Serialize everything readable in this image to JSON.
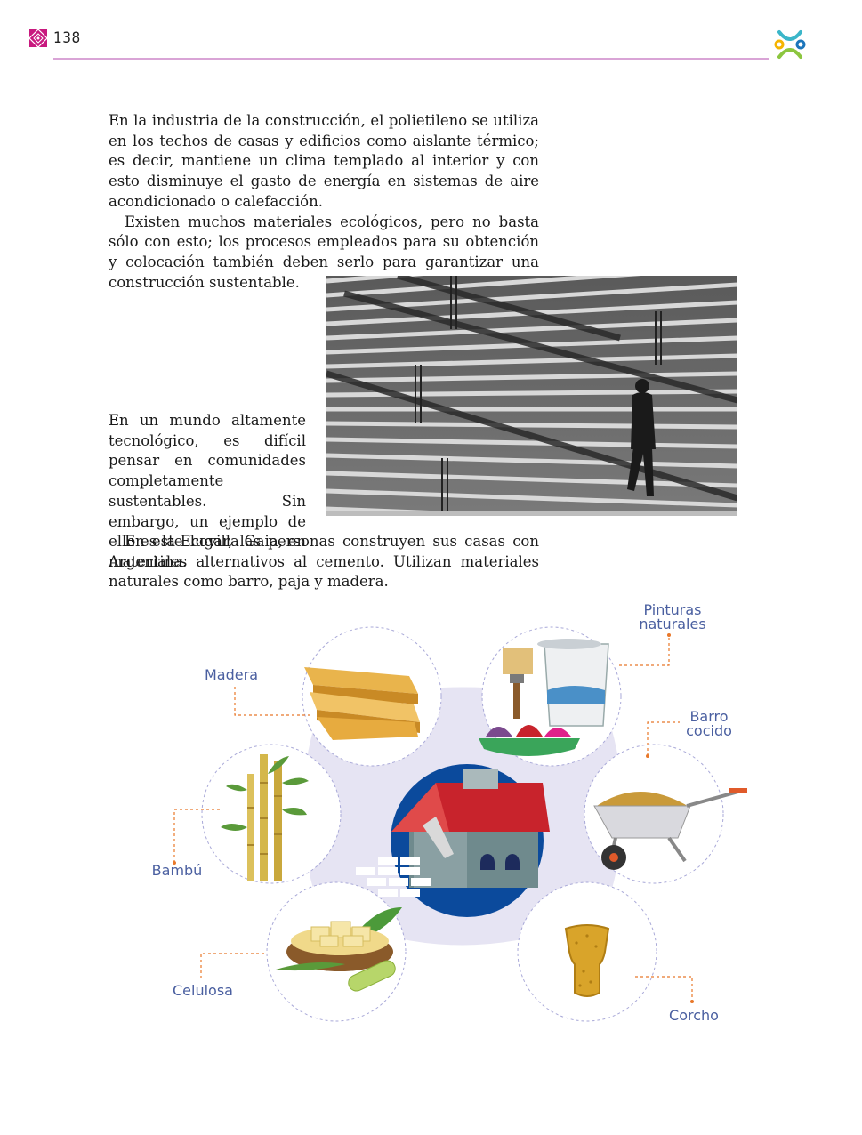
{
  "header": {
    "page_number": "138"
  },
  "paragraphs": {
    "p1": "En la industria de la construcción, el polietileno se utiliza en los techos de casas y edificios como aislante térmico; es decir, mantiene un clima templado al interior y con esto disminuye el gasto de energía en sistemas de aire acondicionado o calefacción.",
    "p1b": "Existen muchos materiales ecológicos, pero no basta sólo con esto; los procesos empleados para su obtención y colocación también deben serlo para garantizar una construcción sustentable.",
    "p2": "En un mundo altamente tecnológico, es difícil pensar en comunidades completamente sustentables. Sin embargo, un ejemplo de ello es la Ecovilla Gaia, en Argentina.",
    "p3": "En este lugar, las personas construyen sus casas con materiales alternativos al cemento. Utilizan materiales naturales como barro, paja y madera."
  },
  "diagram": {
    "labels": {
      "madera": "Madera",
      "pinturas_1": "Pinturas",
      "pinturas_2": "naturales",
      "barro_1": "Barro",
      "barro_2": "cocido",
      "bambu": "Bambú",
      "celulosa": "Celulosa",
      "corcho": "Corcho"
    }
  },
  "colors": {
    "accent_magenta": "#c8197e",
    "rule_pink": "#d9a4d6",
    "label_blue": "#4a5fa0",
    "leader_orange": "#e8782a",
    "hub_blue": "#0b4a9c",
    "hub_lavender": "#e6e4f3"
  }
}
